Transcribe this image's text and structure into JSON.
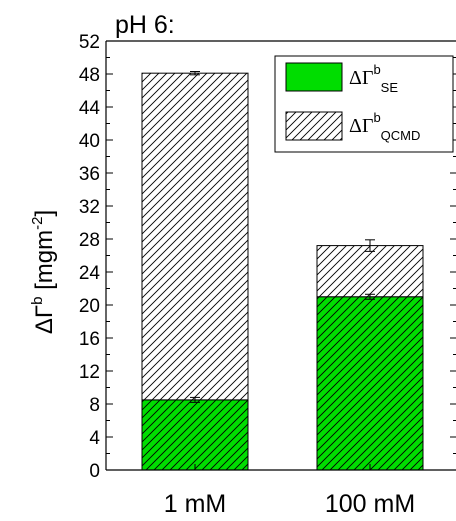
{
  "chart_data": {
    "type": "bar",
    "stacked": true,
    "title": "pH 6:",
    "ylabel": {
      "delta": "ΔΓ",
      "superscript": "b",
      "unit_open": " [mgm",
      "unit_exp": "-2",
      "unit_close": "]"
    },
    "xlabel": "",
    "ylim": [
      0,
      52
    ],
    "yticks": [
      0,
      4,
      8,
      12,
      16,
      20,
      24,
      28,
      32,
      36,
      40,
      44,
      48,
      52
    ],
    "categories": [
      "1 mM",
      "100 mM"
    ],
    "series": [
      {
        "key": "se",
        "legend": {
          "main": "ΔΓ",
          "sup": "b",
          "sub": "SE"
        },
        "fill": "green-hatched",
        "values": [
          8.5,
          21.0
        ],
        "errors": [
          0.3,
          0.3
        ]
      },
      {
        "key": "qcmd",
        "legend": {
          "main": "ΔΓ",
          "sup": "b",
          "sub": "QCMD"
        },
        "fill": "hatched",
        "values": [
          39.6,
          6.2
        ],
        "errors": [
          0.2,
          0.7
        ]
      }
    ],
    "legend_position": "top-right",
    "grid": false
  },
  "colors": {
    "se_fill": "#00dd00",
    "hatch": "#000000",
    "axis": "#000000",
    "background": "#ffffff"
  }
}
